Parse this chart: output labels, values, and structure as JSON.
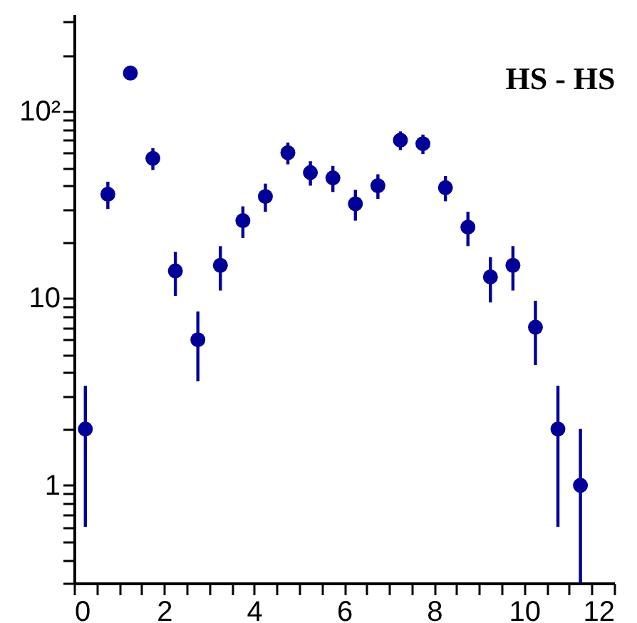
{
  "chart_data": {
    "type": "scatter",
    "title": "HS - HS",
    "x": [
      0.25,
      0.75,
      1.25,
      1.75,
      2.25,
      2.75,
      3.25,
      3.75,
      4.25,
      4.75,
      5.25,
      5.75,
      6.25,
      6.75,
      7.25,
      7.75,
      8.25,
      8.75,
      9.25,
      9.75,
      10.25,
      10.75,
      11.25
    ],
    "series": [
      {
        "color": "#000099",
        "values": [
          2,
          36,
          160,
          56,
          14,
          6,
          15,
          26,
          35,
          60,
          47,
          44,
          32,
          40,
          70,
          67,
          39,
          24,
          13,
          15,
          7,
          2,
          1
        ],
        "errors": [
          [
            0.6,
            3.4
          ],
          6,
          13,
          7.5,
          [
            10.3,
            17.7
          ],
          [
            3.6,
            8.5
          ],
          [
            11,
            19
          ],
          5,
          6,
          8,
          7,
          7,
          6,
          6,
          8,
          8,
          6,
          5,
          [
            9.5,
            16.6
          ],
          [
            11,
            19
          ],
          [
            4.4,
            9.7
          ],
          [
            0.6,
            3.4
          ],
          [
            0.3,
            2
          ]
        ]
      }
    ],
    "log": "y",
    "marker": "circle",
    "grid": false,
    "xlim": [
      0,
      12
    ],
    "ylim": [
      0.3,
      330
    ],
    "xticks": [
      0,
      {
        "value": 0.5,
        "label": null
      },
      {
        "value": 1,
        "label": null
      },
      {
        "value": 1.5,
        "label": null
      },
      2,
      {
        "value": 2.5,
        "label": null
      },
      {
        "value": 3,
        "label": null
      },
      {
        "value": 3.5,
        "label": null
      },
      4,
      {
        "value": 4.5,
        "label": null
      },
      {
        "value": 5,
        "label": null
      },
      {
        "value": 5.5,
        "label": null
      },
      6,
      {
        "value": 6.5,
        "label": null
      },
      {
        "value": 7,
        "label": null
      },
      {
        "value": 7.5,
        "label": null
      },
      8,
      {
        "value": 8.5,
        "label": null
      },
      {
        "value": 9,
        "label": null
      },
      {
        "value": 9.5,
        "label": null
      },
      10,
      {
        "value": 10.5,
        "label": null
      },
      {
        "value": 11,
        "label": null
      },
      {
        "value": 11.5,
        "label": null
      },
      12
    ],
    "yticks": [
      {
        "value": 0.3,
        "label": null
      },
      {
        "value": 0.4,
        "label": null
      },
      {
        "value": 0.5,
        "label": null
      },
      {
        "value": 0.6,
        "label": null
      },
      {
        "value": 0.7,
        "label": null
      },
      {
        "value": 0.8,
        "label": null
      },
      {
        "value": 0.9,
        "label": null
      },
      1,
      {
        "value": 2,
        "label": null
      },
      {
        "value": 3,
        "label": null
      },
      {
        "value": 4,
        "label": null
      },
      {
        "value": 5,
        "label": null
      },
      {
        "value": 6,
        "label": null
      },
      {
        "value": 7,
        "label": null
      },
      {
        "value": 8,
        "label": null
      },
      {
        "value": 9,
        "label": null
      },
      10,
      {
        "value": 20,
        "label": null
      },
      {
        "value": 30,
        "label": null
      },
      {
        "value": 40,
        "label": null
      },
      {
        "value": 50,
        "label": null
      },
      {
        "value": 60,
        "label": null
      },
      {
        "value": 70,
        "label": null
      },
      {
        "value": 80,
        "label": null
      },
      {
        "value": 90,
        "label": null
      },
      {
        "value": 100,
        "label": "10²"
      },
      {
        "value": 200,
        "label": null
      },
      {
        "value": 300,
        "label": null
      }
    ]
  }
}
